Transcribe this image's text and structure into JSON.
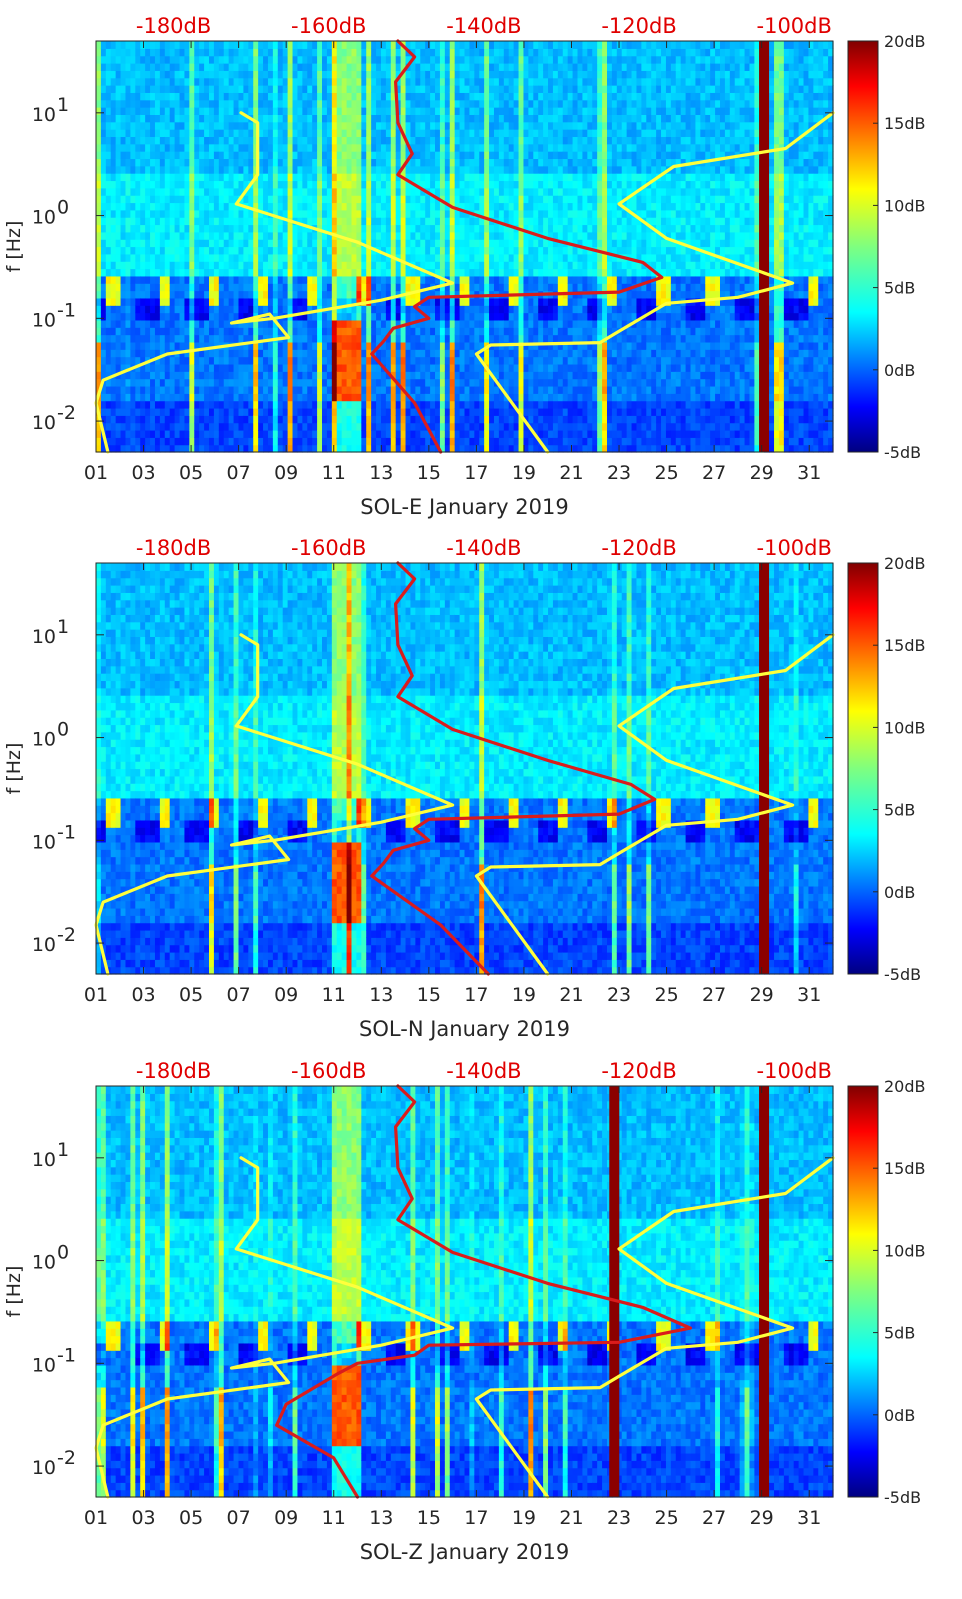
{
  "chart_data": [
    {
      "type": "heatmap",
      "xlabel": "SOL-E January 2019",
      "ylabel": "f [Hz]",
      "x_ticks": [
        "01",
        "03",
        "05",
        "07",
        "09",
        "11",
        "13",
        "15",
        "17",
        "19",
        "21",
        "23",
        "25",
        "27",
        "29",
        "31"
      ],
      "y_ticks": [
        {
          "label": "10",
          "exp": "1"
        },
        {
          "label": "10",
          "exp": "0"
        },
        {
          "label": "10",
          "exp": "-1"
        },
        {
          "label": "10",
          "exp": "-2"
        }
      ],
      "top_ticks": [
        "-180dB",
        "-160dB",
        "-140dB",
        "-120dB",
        "-100dB"
      ],
      "colorbar_ticks": [
        "20dB",
        "15dB",
        "10dB",
        "5dB",
        "0dB",
        "-5dB"
      ],
      "xlim": [
        1,
        32
      ],
      "ylim_hz": [
        0.005,
        50
      ],
      "y_scale": "log",
      "colorbar_range_db": [
        -5,
        20
      ],
      "top_axis_range_db": [
        -190,
        -95
      ],
      "saturated_day_bands": [
        29.1
      ],
      "series": [
        {
          "color": "#ffff3c",
          "points": [
            [
              7.1,
              10
            ],
            [
              7.8,
              8
            ],
            [
              7.8,
              2.5
            ],
            [
              6.9,
              1.3
            ],
            [
              12,
              0.55
            ],
            [
              16,
              0.22
            ],
            [
              13,
              0.15
            ],
            [
              8.5,
              0.1
            ],
            [
              6.7,
              0.09
            ],
            [
              8.3,
              0.11
            ],
            [
              9.1,
              0.065
            ],
            [
              4,
              0.045
            ],
            [
              1.3,
              0.025
            ],
            [
              1,
              0.015
            ],
            [
              1.5,
              0.005
            ]
          ]
        },
        {
          "color": "#ffff3c",
          "points": [
            [
              32,
              10
            ],
            [
              30,
              4.5
            ],
            [
              25.3,
              3
            ],
            [
              23,
              1.3
            ],
            [
              25,
              0.6
            ],
            [
              30.3,
              0.22
            ],
            [
              28,
              0.16
            ],
            [
              25,
              0.14
            ],
            [
              23,
              0.075
            ],
            [
              22.2,
              0.058
            ],
            [
              17.6,
              0.055
            ],
            [
              17,
              0.045
            ],
            [
              20,
              0.005
            ]
          ]
        },
        {
          "color": "#d91c1c",
          "points": [
            [
              13.7,
              50
            ],
            [
              14.4,
              35
            ],
            [
              13.6,
              20
            ],
            [
              13.7,
              8
            ],
            [
              14.3,
              4
            ],
            [
              13.7,
              2.5
            ],
            [
              16,
              1.2
            ],
            [
              20,
              0.6
            ],
            [
              24,
              0.35
            ],
            [
              24.8,
              0.25
            ],
            [
              23,
              0.18
            ],
            [
              15,
              0.16
            ],
            [
              14.4,
              0.13
            ],
            [
              15,
              0.1
            ],
            [
              13.5,
              0.08
            ],
            [
              13.1,
              0.06
            ],
            [
              12.6,
              0.045
            ],
            [
              14.4,
              0.015
            ],
            [
              15.5,
              0.005
            ]
          ]
        }
      ]
    },
    {
      "type": "heatmap",
      "xlabel": "SOL-N January 2019",
      "ylabel": "f [Hz]",
      "x_ticks": [
        "01",
        "03",
        "05",
        "07",
        "09",
        "11",
        "13",
        "15",
        "17",
        "19",
        "21",
        "23",
        "25",
        "27",
        "29",
        "31"
      ],
      "y_ticks": [
        {
          "label": "10",
          "exp": "1"
        },
        {
          "label": "10",
          "exp": "0"
        },
        {
          "label": "10",
          "exp": "-1"
        },
        {
          "label": "10",
          "exp": "-2"
        }
      ],
      "top_ticks": [
        "-180dB",
        "-160dB",
        "-140dB",
        "-120dB",
        "-100dB"
      ],
      "colorbar_ticks": [
        "20dB",
        "15dB",
        "10dB",
        "5dB",
        "0dB",
        "-5dB"
      ],
      "xlim": [
        1,
        32
      ],
      "ylim_hz": [
        0.005,
        50
      ],
      "y_scale": "log",
      "colorbar_range_db": [
        -5,
        20
      ],
      "top_axis_range_db": [
        -190,
        -95
      ],
      "saturated_day_bands": [
        29.1
      ],
      "series": [
        {
          "color": "#ffff3c",
          "points": [
            [
              7.1,
              10
            ],
            [
              7.8,
              8
            ],
            [
              7.8,
              2.5
            ],
            [
              6.9,
              1.3
            ],
            [
              12,
              0.55
            ],
            [
              16,
              0.22
            ],
            [
              13,
              0.15
            ],
            [
              8.5,
              0.1
            ],
            [
              6.7,
              0.09
            ],
            [
              8.3,
              0.11
            ],
            [
              9.1,
              0.065
            ],
            [
              4,
              0.045
            ],
            [
              1.3,
              0.025
            ],
            [
              1,
              0.015
            ],
            [
              1.5,
              0.005
            ]
          ]
        },
        {
          "color": "#ffff3c",
          "points": [
            [
              32,
              10
            ],
            [
              30,
              4.5
            ],
            [
              25.3,
              3
            ],
            [
              23,
              1.3
            ],
            [
              25,
              0.6
            ],
            [
              30.3,
              0.22
            ],
            [
              28,
              0.16
            ],
            [
              25,
              0.14
            ],
            [
              23,
              0.075
            ],
            [
              22.2,
              0.058
            ],
            [
              17.6,
              0.055
            ],
            [
              17,
              0.045
            ],
            [
              20,
              0.005
            ]
          ]
        },
        {
          "color": "#d91c1c",
          "points": [
            [
              13.7,
              50
            ],
            [
              14.4,
              35
            ],
            [
              13.6,
              20
            ],
            [
              13.7,
              8
            ],
            [
              14.3,
              4
            ],
            [
              13.7,
              2.5
            ],
            [
              16,
              1.2
            ],
            [
              20,
              0.6
            ],
            [
              23.5,
              0.35
            ],
            [
              24.5,
              0.25
            ],
            [
              23,
              0.18
            ],
            [
              15,
              0.16
            ],
            [
              14.4,
              0.13
            ],
            [
              15,
              0.1
            ],
            [
              13.5,
              0.08
            ],
            [
              13.1,
              0.06
            ],
            [
              12.6,
              0.045
            ],
            [
              15.5,
              0.015
            ],
            [
              17.5,
              0.005
            ]
          ]
        }
      ]
    },
    {
      "type": "heatmap",
      "xlabel": "SOL-Z January 2019",
      "ylabel": "f [Hz]",
      "x_ticks": [
        "01",
        "03",
        "05",
        "07",
        "09",
        "11",
        "13",
        "15",
        "17",
        "19",
        "21",
        "23",
        "25",
        "27",
        "29",
        "31"
      ],
      "y_ticks": [
        {
          "label": "10",
          "exp": "1"
        },
        {
          "label": "10",
          "exp": "0"
        },
        {
          "label": "10",
          "exp": "-1"
        },
        {
          "label": "10",
          "exp": "-2"
        }
      ],
      "top_ticks": [
        "-180dB",
        "-160dB",
        "-140dB",
        "-120dB",
        "-100dB"
      ],
      "colorbar_ticks": [
        "20dB",
        "15dB",
        "10dB",
        "5dB",
        "0dB",
        "-5dB"
      ],
      "xlim": [
        1,
        32
      ],
      "ylim_hz": [
        0.005,
        50
      ],
      "y_scale": "log",
      "colorbar_range_db": [
        -5,
        20
      ],
      "top_axis_range_db": [
        -190,
        -95
      ],
      "saturated_day_bands": [
        22.8,
        29.1
      ],
      "series": [
        {
          "color": "#ffff3c",
          "points": [
            [
              7.1,
              10
            ],
            [
              7.8,
              8
            ],
            [
              7.8,
              2.5
            ],
            [
              6.9,
              1.3
            ],
            [
              12,
              0.55
            ],
            [
              16,
              0.22
            ],
            [
              13,
              0.15
            ],
            [
              8.5,
              0.1
            ],
            [
              6.7,
              0.09
            ],
            [
              8.3,
              0.11
            ],
            [
              9.1,
              0.065
            ],
            [
              4,
              0.045
            ],
            [
              1.3,
              0.025
            ],
            [
              1,
              0.015
            ],
            [
              1.5,
              0.005
            ]
          ]
        },
        {
          "color": "#ffff3c",
          "points": [
            [
              32,
              10
            ],
            [
              30,
              4.5
            ],
            [
              25.3,
              3
            ],
            [
              23,
              1.3
            ],
            [
              25,
              0.6
            ],
            [
              30.3,
              0.22
            ],
            [
              28,
              0.16
            ],
            [
              25,
              0.14
            ],
            [
              23,
              0.075
            ],
            [
              22.2,
              0.058
            ],
            [
              17.6,
              0.055
            ],
            [
              17,
              0.045
            ],
            [
              20,
              0.005
            ]
          ]
        },
        {
          "color": "#d91c1c",
          "points": [
            [
              13.7,
              50
            ],
            [
              14.4,
              35
            ],
            [
              13.6,
              20
            ],
            [
              13.7,
              8
            ],
            [
              14.3,
              4
            ],
            [
              13.7,
              2.5
            ],
            [
              16,
              1.2
            ],
            [
              20,
              0.6
            ],
            [
              24,
              0.35
            ],
            [
              26,
              0.22
            ],
            [
              23,
              0.16
            ],
            [
              15,
              0.15
            ],
            [
              14.4,
              0.12
            ],
            [
              12,
              0.1
            ],
            [
              11.2,
              0.08
            ],
            [
              9,
              0.04
            ],
            [
              8.6,
              0.025
            ],
            [
              11,
              0.012
            ],
            [
              12,
              0.005
            ]
          ]
        }
      ]
    }
  ]
}
